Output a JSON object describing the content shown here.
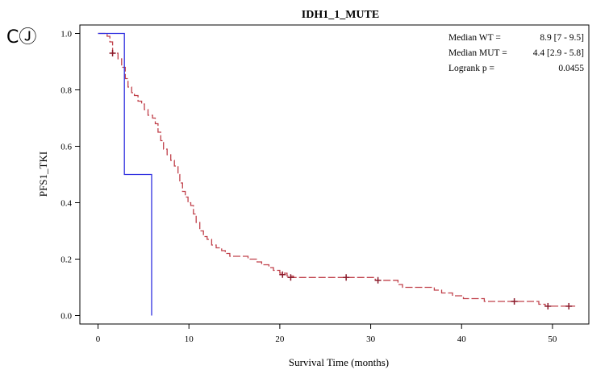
{
  "panel_label": "CⒿ",
  "chart_data": {
    "type": "line",
    "title": "IDH1_1_MUTE",
    "xlabel": "Survival Time (months)",
    "ylabel": "PFS1_TKI",
    "xlim": [
      -2,
      54
    ],
    "ylim": [
      -0.03,
      1.03
    ],
    "x_ticks": [
      0,
      10,
      20,
      30,
      40,
      50
    ],
    "y_ticks": [
      0.0,
      0.2,
      0.4,
      0.6,
      0.8,
      1.0
    ],
    "x_tick_labels": [
      "0",
      "10",
      "20",
      "30",
      "40",
      "50"
    ],
    "y_tick_labels": [
      "0.0",
      "0.2",
      "0.4",
      "0.6",
      "0.8",
      "1.0"
    ],
    "grid": false,
    "stats": [
      {
        "label": "Median WT =",
        "value": "8.9 [7 - 9.5]"
      },
      {
        "label": "Median MUT =",
        "value": "4.4 [2.9 - 5.8]"
      },
      {
        "label": "Logrank p =",
        "value": "0.0455"
      }
    ],
    "series": [
      {
        "color": "#c0404a",
        "dashed": true,
        "steps": [
          [
            0,
            1.0
          ],
          [
            1.0,
            0.99
          ],
          [
            1.3,
            0.97
          ],
          [
            1.6,
            0.93
          ],
          [
            2.2,
            0.91
          ],
          [
            2.6,
            0.88
          ],
          [
            3.0,
            0.84
          ],
          [
            3.3,
            0.81
          ],
          [
            3.7,
            0.79
          ],
          [
            4.0,
            0.78
          ],
          [
            4.4,
            0.76
          ],
          [
            4.8,
            0.75
          ],
          [
            5.1,
            0.73
          ],
          [
            5.5,
            0.71
          ],
          [
            6.0,
            0.7
          ],
          [
            6.3,
            0.68
          ],
          [
            6.6,
            0.65
          ],
          [
            6.9,
            0.62
          ],
          [
            7.2,
            0.59
          ],
          [
            7.6,
            0.57
          ],
          [
            8.0,
            0.55
          ],
          [
            8.4,
            0.53
          ],
          [
            8.8,
            0.5
          ],
          [
            9.0,
            0.47
          ],
          [
            9.3,
            0.44
          ],
          [
            9.6,
            0.42
          ],
          [
            9.9,
            0.4
          ],
          [
            10.2,
            0.39
          ],
          [
            10.5,
            0.36
          ],
          [
            10.8,
            0.33
          ],
          [
            11.2,
            0.3
          ],
          [
            11.6,
            0.28
          ],
          [
            12.0,
            0.27
          ],
          [
            12.5,
            0.25
          ],
          [
            13.0,
            0.24
          ],
          [
            13.6,
            0.23
          ],
          [
            14.0,
            0.22
          ],
          [
            14.5,
            0.21
          ],
          [
            16.5,
            0.2
          ],
          [
            17.5,
            0.19
          ],
          [
            18.0,
            0.18
          ],
          [
            18.8,
            0.17
          ],
          [
            19.3,
            0.16
          ],
          [
            20.0,
            0.15
          ],
          [
            20.8,
            0.14
          ],
          [
            21.5,
            0.135
          ],
          [
            30.5,
            0.125
          ],
          [
            33.0,
            0.11
          ],
          [
            33.5,
            0.1
          ],
          [
            37.0,
            0.09
          ],
          [
            37.8,
            0.08
          ],
          [
            39.0,
            0.07
          ],
          [
            40.2,
            0.06
          ],
          [
            42.5,
            0.05
          ],
          [
            48.5,
            0.04
          ],
          [
            49.2,
            0.033
          ],
          [
            52.5,
            0.033
          ]
        ],
        "censored": [
          [
            1.6,
            0.93
          ],
          [
            20.3,
            0.145
          ],
          [
            21.2,
            0.135
          ],
          [
            27.3,
            0.135
          ],
          [
            30.8,
            0.125
          ],
          [
            45.8,
            0.05
          ],
          [
            49.5,
            0.033
          ],
          [
            51.8,
            0.033
          ]
        ]
      },
      {
        "color": "#3030e0",
        "dashed": false,
        "steps": [
          [
            0,
            1.0
          ],
          [
            2.9,
            1.0
          ],
          [
            2.9,
            0.5
          ],
          [
            5.9,
            0.5
          ],
          [
            5.9,
            0.0
          ]
        ],
        "censored": []
      }
    ]
  }
}
